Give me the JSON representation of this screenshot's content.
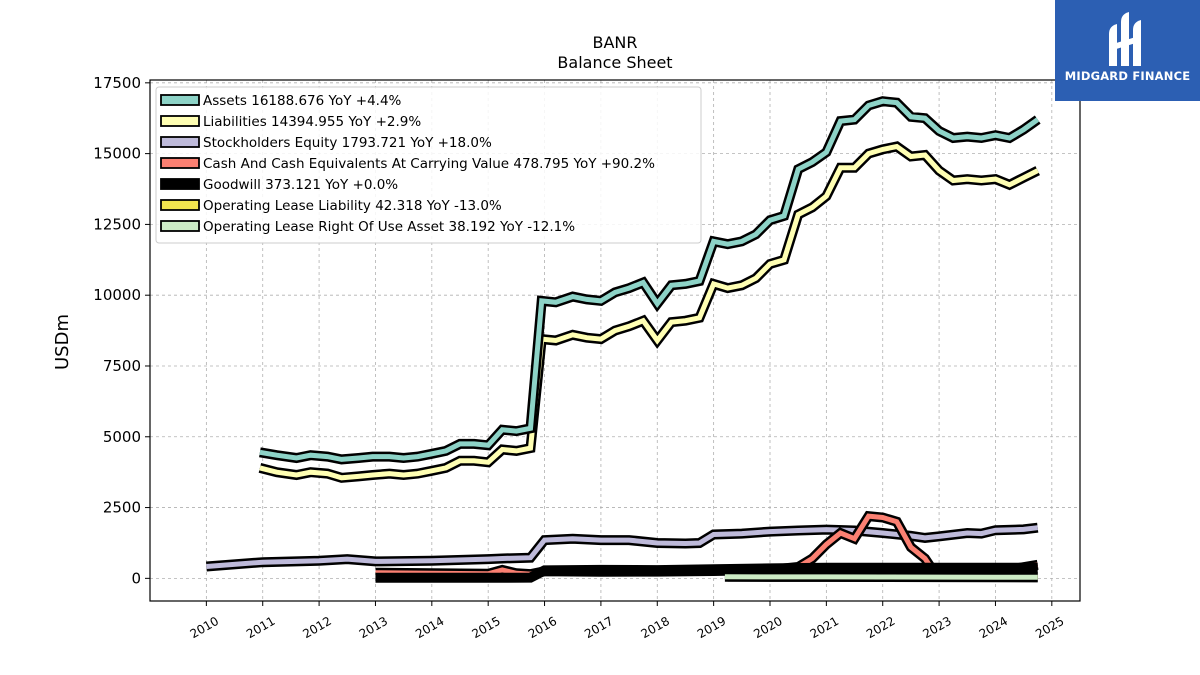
{
  "chart_data": {
    "type": "line",
    "title": "BANR",
    "subtitle": "Balance  Sheet",
    "ylabel": "USDm",
    "xlabel": "",
    "ylim": [
      -800,
      17600
    ],
    "xlim": [
      2009.0,
      2025.5
    ],
    "yticks": [
      0,
      2500,
      5000,
      7500,
      10000,
      12500,
      15000,
      17500
    ],
    "ytick_labels": [
      "0",
      "2500",
      "5000",
      "7500",
      "10000",
      "12500",
      "15000",
      "17500"
    ],
    "xticks": [
      2010,
      2011,
      2012,
      2013,
      2014,
      2015,
      2016,
      2017,
      2018,
      2019,
      2020,
      2021,
      2022,
      2023,
      2024,
      2025
    ],
    "xtick_labels": [
      "2010",
      "2011",
      "2012",
      "2013",
      "2014",
      "2015",
      "2016",
      "2017",
      "2018",
      "2019",
      "2020",
      "2021",
      "2022",
      "2023",
      "2024",
      "2025"
    ],
    "grid": true,
    "legend_position": "top-left",
    "series": [
      {
        "name": "Assets",
        "legend_label": "Assets  16188.676 YoY +4.4%",
        "color": "#8dd3c7",
        "x": [
          2010.95,
          2011.25,
          2011.6,
          2011.85,
          2012.15,
          2012.4,
          2012.7,
          2012.95,
          2013.25,
          2013.5,
          2013.75,
          2014.0,
          2014.25,
          2014.5,
          2014.75,
          2015.0,
          2015.25,
          2015.5,
          2015.75,
          2015.95,
          2016.2,
          2016.5,
          2016.75,
          2017.0,
          2017.25,
          2017.5,
          2017.75,
          2018.0,
          2018.25,
          2018.5,
          2018.75,
          2019.0,
          2019.25,
          2019.5,
          2019.75,
          2020.0,
          2020.25,
          2020.5,
          2020.75,
          2021.0,
          2021.25,
          2021.5,
          2021.75,
          2022.0,
          2022.25,
          2022.5,
          2022.75,
          2023.0,
          2023.25,
          2023.5,
          2023.75,
          2024.0,
          2024.25,
          2024.5,
          2024.75
        ],
        "y": [
          4450,
          4350,
          4250,
          4350,
          4300,
          4200,
          4250,
          4300,
          4300,
          4250,
          4300,
          4400,
          4500,
          4750,
          4750,
          4700,
          5250,
          5200,
          5300,
          9800,
          9750,
          9950,
          9850,
          9800,
          10100,
          10250,
          10450,
          9700,
          10350,
          10400,
          10500,
          11900,
          11800,
          11900,
          12150,
          12650,
          12800,
          14450,
          14700,
          15050,
          16150,
          16200,
          16700,
          16850,
          16800,
          16300,
          16250,
          15800,
          15550,
          15600,
          15550,
          15650,
          15550,
          15850,
          16200
        ]
      },
      {
        "name": "Liabilities",
        "legend_label": "Liabilities  14394.955 YoY +2.9%",
        "color": "#ffffb3",
        "x": [
          2010.95,
          2011.25,
          2011.6,
          2011.85,
          2012.15,
          2012.4,
          2012.7,
          2012.95,
          2013.25,
          2013.5,
          2013.75,
          2014.0,
          2014.25,
          2014.5,
          2014.75,
          2015.0,
          2015.25,
          2015.5,
          2015.75,
          2015.95,
          2016.2,
          2016.5,
          2016.75,
          2017.0,
          2017.25,
          2017.5,
          2017.75,
          2018.0,
          2018.25,
          2018.5,
          2018.75,
          2019.0,
          2019.25,
          2019.5,
          2019.75,
          2020.0,
          2020.25,
          2020.5,
          2020.75,
          2021.0,
          2021.25,
          2021.5,
          2021.75,
          2022.0,
          2022.25,
          2022.5,
          2022.75,
          2023.0,
          2023.25,
          2023.5,
          2023.75,
          2024.0,
          2024.25,
          2024.5,
          2024.75
        ],
        "y": [
          3900,
          3750,
          3650,
          3750,
          3700,
          3550,
          3600,
          3650,
          3700,
          3650,
          3700,
          3800,
          3900,
          4150,
          4150,
          4100,
          4550,
          4500,
          4600,
          8450,
          8400,
          8600,
          8500,
          8450,
          8750,
          8900,
          9100,
          8400,
          9050,
          9100,
          9200,
          10400,
          10250,
          10350,
          10600,
          11100,
          11250,
          12850,
          13100,
          13500,
          14500,
          14500,
          15000,
          15150,
          15250,
          14900,
          14950,
          14400,
          14050,
          14100,
          14050,
          14100,
          13900,
          14150,
          14400
        ]
      },
      {
        "name": "Stockholders Equity",
        "legend_label": "Stockholders Equity  1793.721 YoY +18.0%",
        "color": "#bebada",
        "x": [
          2010.0,
          2011.0,
          2012.0,
          2012.5,
          2013.0,
          2014.0,
          2015.0,
          2015.25,
          2015.75,
          2016.0,
          2016.5,
          2017.0,
          2017.5,
          2018.0,
          2018.5,
          2018.75,
          2019.0,
          2019.5,
          2020.0,
          2020.5,
          2021.0,
          2021.5,
          2022.0,
          2022.5,
          2022.75,
          2023.0,
          2023.5,
          2023.75,
          2024.0,
          2024.5,
          2024.75
        ],
        "y": [
          420,
          570,
          620,
          680,
          600,
          620,
          680,
          700,
          730,
          1350,
          1400,
          1350,
          1350,
          1250,
          1230,
          1250,
          1550,
          1580,
          1650,
          1690,
          1720,
          1690,
          1600,
          1500,
          1430,
          1480,
          1600,
          1580,
          1700,
          1730,
          1790
        ]
      },
      {
        "name": "Cash And Cash Equivalents At Carrying Value",
        "legend_label": "Cash And Cash Equivalents At Carrying Value  478.795 YoY +90.2%",
        "color": "#fb8072",
        "x": [
          2013.0,
          2014.0,
          2015.0,
          2015.25,
          2015.5,
          2015.75,
          2016.0,
          2017.0,
          2018.0,
          2019.0,
          2020.0,
          2020.5,
          2020.75,
          2021.0,
          2021.25,
          2021.5,
          2021.75,
          2022.0,
          2022.25,
          2022.5,
          2022.75,
          2022.9,
          2023.0,
          2024.0,
          2024.75
        ],
        "y": [
          200,
          180,
          160,
          300,
          180,
          150,
          250,
          230,
          240,
          260,
          300,
          400,
          700,
          1200,
          1600,
          1400,
          2200,
          2150,
          2000,
          1100,
          700,
          250,
          200,
          230,
          480
        ]
      },
      {
        "name": "Goodwill",
        "legend_label": "Goodwill  373.121 YoY +0.0%",
        "color": "#000000",
        "x": [
          2013.0,
          2014.0,
          2015.0,
          2015.75,
          2016.0,
          2017.0,
          2018.0,
          2019.0,
          2020.0,
          2021.0,
          2022.0,
          2023.0,
          2024.0,
          2024.75
        ],
        "y": [
          20,
          20,
          20,
          25,
          280,
          300,
          290,
          320,
          350,
          373,
          373,
          373,
          373,
          373
        ]
      },
      {
        "name": "Operating Lease Liability",
        "legend_label": "Operating Lease Liability  42.318 YoY -13.0%",
        "color": "#f2e54f",
        "x": [
          2019.25,
          2020.0,
          2021.0,
          2022.0,
          2023.0,
          2024.0,
          2024.75
        ],
        "y": [
          60,
          58,
          55,
          52,
          50,
          47,
          42
        ]
      },
      {
        "name": "Operating Lease Right Of Use Asset",
        "legend_label": "Operating Lease Right Of Use Asset  38.192 YoY -12.1%",
        "color": "#ccebc5",
        "x": [
          2019.2,
          2020.0,
          2021.0,
          2022.0,
          2023.0,
          2024.0,
          2024.75
        ],
        "y": [
          55,
          52,
          50,
          47,
          45,
          42,
          38
        ]
      }
    ]
  },
  "logo": {
    "text": "MIDGARD FINANCE",
    "background": "#2c5fb3",
    "icon": "midgard-logo-icon"
  }
}
